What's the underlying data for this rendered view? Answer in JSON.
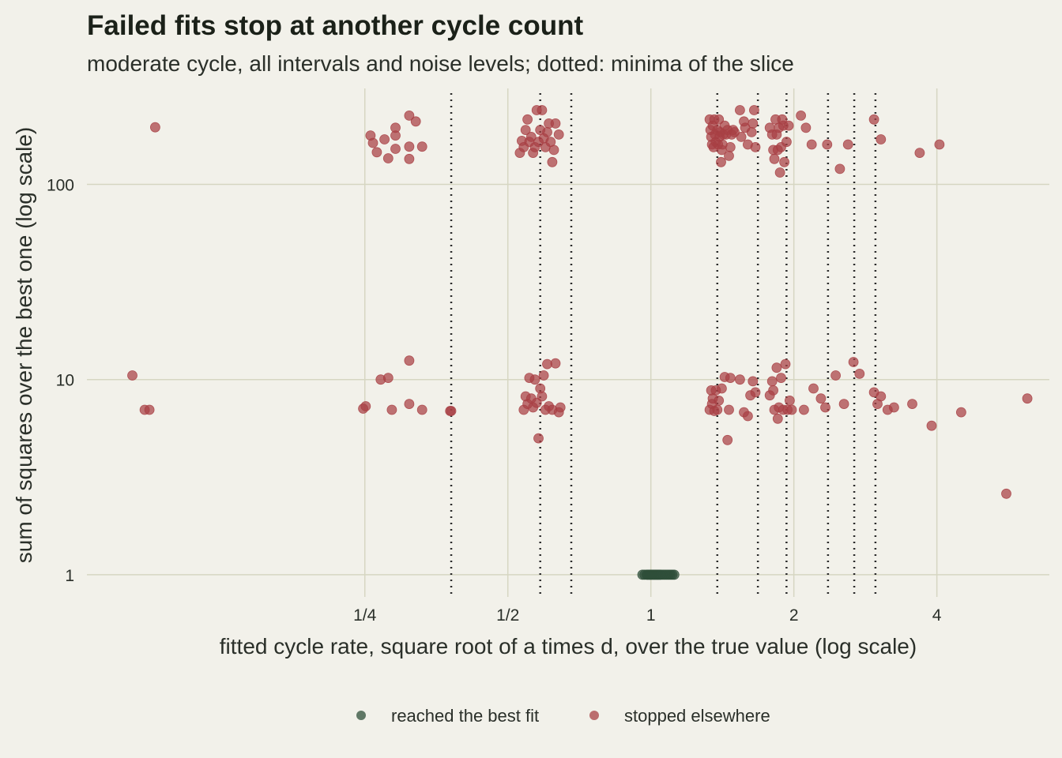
{
  "chart_data": {
    "type": "scatter",
    "title": "Failed fits stop at another cycle count",
    "subtitle": "moderate cycle, all intervals and noise levels; dotted: minima of the slice",
    "xlabel": "fitted cycle rate, square root of a times d, over the true value (log scale)",
    "ylabel": "sum of squares over the best one (log scale)",
    "x_scale": "log2",
    "y_scale": "log10",
    "xlim": [
      0.065,
      6.9
    ],
    "ylim": [
      0.77,
      310
    ],
    "x_ticks": [
      {
        "value": 0.25,
        "label": "1/4"
      },
      {
        "value": 0.5,
        "label": "1/2"
      },
      {
        "value": 1,
        "label": "1"
      },
      {
        "value": 2,
        "label": "2"
      },
      {
        "value": 4,
        "label": "4"
      }
    ],
    "y_ticks": [
      {
        "value": 1,
        "label": "1"
      },
      {
        "value": 10,
        "label": "10"
      },
      {
        "value": 100,
        "label": "100"
      }
    ],
    "grid": true,
    "legend_position": "bottom",
    "minima_lines": [
      0.38,
      0.585,
      0.68,
      1.38,
      1.68,
      1.93,
      2.36,
      2.68,
      2.97
    ],
    "series": [
      {
        "name": "reached the best fit",
        "color": "#2f4f3a",
        "points": [
          [
            0.96,
            1
          ],
          [
            0.97,
            1
          ],
          [
            0.98,
            1
          ],
          [
            0.985,
            1
          ],
          [
            0.99,
            1
          ],
          [
            0.995,
            1
          ],
          [
            1,
            1
          ],
          [
            1.005,
            1
          ],
          [
            1.01,
            1
          ],
          [
            1.015,
            1
          ],
          [
            1.02,
            1
          ],
          [
            1.025,
            1
          ],
          [
            1.03,
            1
          ],
          [
            1.035,
            1
          ],
          [
            1.04,
            1
          ],
          [
            1.045,
            1
          ],
          [
            1.05,
            1
          ],
          [
            1.06,
            1
          ],
          [
            1.07,
            1
          ],
          [
            1.08,
            1
          ],
          [
            1.09,
            1
          ],
          [
            1.1,
            1
          ],
          [
            1.11,
            1
          ],
          [
            1.12,
            1
          ]
        ]
      },
      {
        "name": "stopped elsewhere",
        "color": "#a84044",
        "points": [
          [
            0.0905,
            196
          ],
          [
            0.257,
            178
          ],
          [
            0.26,
            163
          ],
          [
            0.265,
            146
          ],
          [
            0.275,
            170
          ],
          [
            0.28,
            136
          ],
          [
            0.29,
            152
          ],
          [
            0.29,
            195
          ],
          [
            0.29,
            178
          ],
          [
            0.31,
            225
          ],
          [
            0.31,
            156
          ],
          [
            0.31,
            135
          ],
          [
            0.32,
            210
          ],
          [
            0.33,
            156
          ],
          [
            0.53,
            145
          ],
          [
            0.535,
            167
          ],
          [
            0.54,
            155
          ],
          [
            0.545,
            190
          ],
          [
            0.55,
            215
          ],
          [
            0.555,
            165
          ],
          [
            0.56,
            175
          ],
          [
            0.565,
            145
          ],
          [
            0.57,
            155
          ],
          [
            0.575,
            240
          ],
          [
            0.58,
            165
          ],
          [
            0.585,
            190
          ],
          [
            0.59,
            240
          ],
          [
            0.595,
            172
          ],
          [
            0.6,
            155
          ],
          [
            0.605,
            185
          ],
          [
            0.61,
            205
          ],
          [
            0.615,
            165
          ],
          [
            0.62,
            130
          ],
          [
            0.625,
            150
          ],
          [
            0.63,
            205
          ],
          [
            0.64,
            180
          ],
          [
            1.33,
            215
          ],
          [
            1.335,
            190
          ],
          [
            1.34,
            175
          ],
          [
            1.345,
            160
          ],
          [
            1.35,
            200
          ],
          [
            1.355,
            155
          ],
          [
            1.36,
            215
          ],
          [
            1.365,
            180
          ],
          [
            1.37,
            165
          ],
          [
            1.38,
            190
          ],
          [
            1.385,
            160
          ],
          [
            1.39,
            215
          ],
          [
            1.395,
            175
          ],
          [
            1.4,
            185
          ],
          [
            1.405,
            130
          ],
          [
            1.41,
            150
          ],
          [
            1.415,
            160
          ],
          [
            1.42,
            180
          ],
          [
            1.43,
            200
          ],
          [
            1.44,
            180
          ],
          [
            1.45,
            190
          ],
          [
            1.46,
            140
          ],
          [
            1.47,
            155
          ],
          [
            1.48,
            180
          ],
          [
            1.49,
            190
          ],
          [
            1.5,
            185
          ],
          [
            1.54,
            240
          ],
          [
            1.55,
            175
          ],
          [
            1.57,
            210
          ],
          [
            1.58,
            195
          ],
          [
            1.6,
            160
          ],
          [
            1.63,
            185
          ],
          [
            1.64,
            205
          ],
          [
            1.65,
            240
          ],
          [
            1.66,
            155
          ],
          [
            1.78,
            195
          ],
          [
            1.8,
            180
          ],
          [
            1.81,
            150
          ],
          [
            1.82,
            135
          ],
          [
            1.83,
            215
          ],
          [
            1.84,
            180
          ],
          [
            1.85,
            150
          ],
          [
            1.86,
            195
          ],
          [
            1.87,
            115
          ],
          [
            1.88,
            155
          ],
          [
            1.89,
            215
          ],
          [
            1.9,
            200
          ],
          [
            1.91,
            130
          ],
          [
            1.93,
            165
          ],
          [
            1.95,
            200
          ],
          [
            2.07,
            225
          ],
          [
            2.12,
            195
          ],
          [
            2.18,
            160
          ],
          [
            2.35,
            160
          ],
          [
            2.5,
            120
          ],
          [
            2.6,
            160
          ],
          [
            2.95,
            215
          ],
          [
            3.05,
            170
          ],
          [
            3.68,
            145
          ],
          [
            4.05,
            160
          ],
          [
            0.081,
            10.5
          ],
          [
            0.086,
            7.0
          ],
          [
            0.088,
            7.0
          ],
          [
            0.248,
            7.1
          ],
          [
            0.251,
            7.3
          ],
          [
            0.27,
            10.0
          ],
          [
            0.28,
            10.2
          ],
          [
            0.285,
            7.0
          ],
          [
            0.31,
            7.5
          ],
          [
            0.31,
            12.5
          ],
          [
            0.33,
            7.0
          ],
          [
            0.378,
            6.9
          ],
          [
            0.38,
            6.9
          ],
          [
            0.54,
            7.0
          ],
          [
            0.545,
            8.2
          ],
          [
            0.55,
            7.5
          ],
          [
            0.555,
            10.2
          ],
          [
            0.56,
            8.0
          ],
          [
            0.565,
            7.2
          ],
          [
            0.57,
            10.0
          ],
          [
            0.575,
            7.6
          ],
          [
            0.58,
            5.0
          ],
          [
            0.585,
            9.0
          ],
          [
            0.59,
            8.2
          ],
          [
            0.595,
            10.5
          ],
          [
            0.6,
            7.0
          ],
          [
            0.605,
            12.0
          ],
          [
            0.61,
            7.3
          ],
          [
            0.62,
            7.0
          ],
          [
            0.63,
            12.1
          ],
          [
            0.64,
            6.8
          ],
          [
            0.645,
            7.2
          ],
          [
            1.33,
            7.0
          ],
          [
            1.34,
            8.8
          ],
          [
            1.345,
            7.5
          ],
          [
            1.35,
            8.0
          ],
          [
            1.36,
            6.9
          ],
          [
            1.37,
            8.8
          ],
          [
            1.38,
            7.0
          ],
          [
            1.39,
            7.8
          ],
          [
            1.41,
            9.0
          ],
          [
            1.43,
            10.3
          ],
          [
            1.45,
            4.9
          ],
          [
            1.46,
            7.0
          ],
          [
            1.47,
            10.2
          ],
          [
            1.54,
            10.0
          ],
          [
            1.57,
            6.8
          ],
          [
            1.6,
            6.5
          ],
          [
            1.62,
            8.3
          ],
          [
            1.64,
            9.8
          ],
          [
            1.66,
            8.6
          ],
          [
            1.78,
            8.3
          ],
          [
            1.8,
            9.8
          ],
          [
            1.81,
            8.8
          ],
          [
            1.82,
            7.0
          ],
          [
            1.84,
            11.5
          ],
          [
            1.85,
            6.3
          ],
          [
            1.86,
            7.2
          ],
          [
            1.88,
            10.2
          ],
          [
            1.9,
            7.0
          ],
          [
            1.92,
            12.0
          ],
          [
            1.94,
            7.0
          ],
          [
            1.96,
            7.8
          ],
          [
            1.98,
            7.0
          ],
          [
            2.1,
            7.0
          ],
          [
            2.2,
            9.0
          ],
          [
            2.28,
            8.0
          ],
          [
            2.33,
            7.2
          ],
          [
            2.45,
            10.5
          ],
          [
            2.55,
            7.5
          ],
          [
            2.67,
            12.3
          ],
          [
            2.75,
            10.7
          ],
          [
            2.95,
            8.6
          ],
          [
            3.0,
            7.5
          ],
          [
            3.05,
            8.2
          ],
          [
            3.15,
            7.0
          ],
          [
            3.25,
            7.2
          ],
          [
            3.55,
            7.5
          ],
          [
            3.9,
            5.8
          ],
          [
            4.5,
            6.8
          ],
          [
            5.6,
            2.6
          ],
          [
            6.2,
            8.0
          ]
        ]
      }
    ]
  }
}
